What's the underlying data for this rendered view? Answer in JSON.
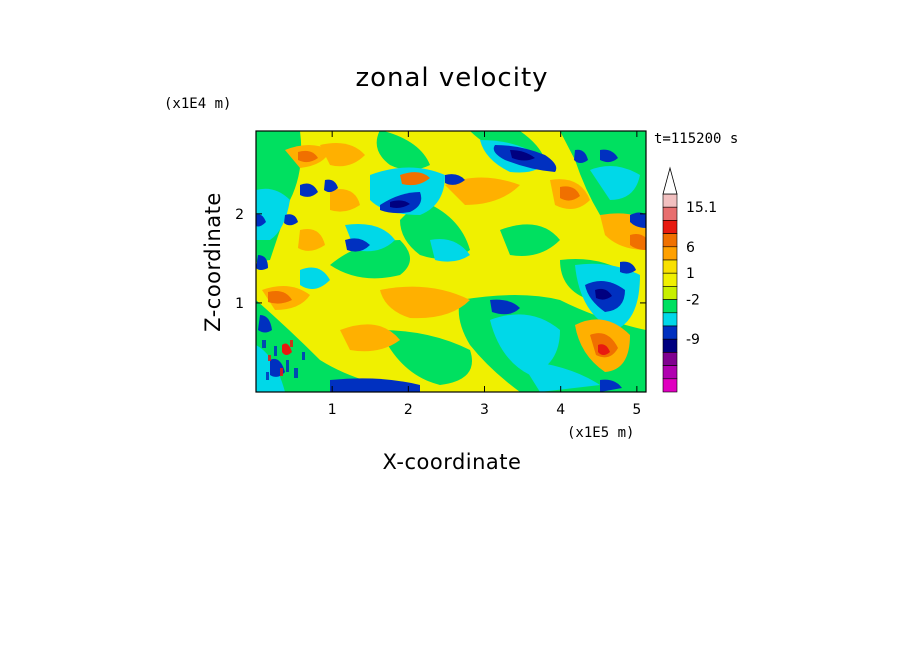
{
  "chart_data": {
    "type": "heatmap",
    "title": "zonal velocity",
    "xlabel": "X-coordinate",
    "ylabel": "Z-coordinate",
    "x_units": "(x1E5 m)",
    "y_units": "(x1E4 m)",
    "time_label": "t=115200 s",
    "xlim": [
      0,
      5.12
    ],
    "ylim": [
      0,
      2.93
    ],
    "x_ticks": [
      "1",
      "2",
      "3",
      "4",
      "5"
    ],
    "y_ticks": [
      "1",
      "2"
    ],
    "x_tick_values": [
      1,
      2,
      3,
      4,
      5
    ],
    "y_tick_values": [
      1,
      2
    ],
    "colorbar": {
      "levels": [
        "15.1",
        "6",
        "1",
        "-2",
        "-9"
      ],
      "level_index": [
        1,
        4,
        6,
        8,
        11
      ],
      "extend": "max",
      "colors": [
        "#f2c0c0",
        "#e86e6e",
        "#e81a10",
        "#f07000",
        "#ffa000",
        "#f8e000",
        "#f0f000",
        "#c8f000",
        "#00e060",
        "#00d8e8",
        "#0030c0",
        "#000080",
        "#800090",
        "#b000b0",
        "#e000c0"
      ]
    },
    "field_colors": {
      "strong_positive": "#f07000",
      "positive": "#ffb000",
      "weak_positive": "#f0f000",
      "near_zero": "#00e060",
      "weak_negative": "#00d8e8",
      "negative": "#0030c0",
      "strong_negative": "#000080",
      "extreme_positive": "#e81a10"
    }
  }
}
